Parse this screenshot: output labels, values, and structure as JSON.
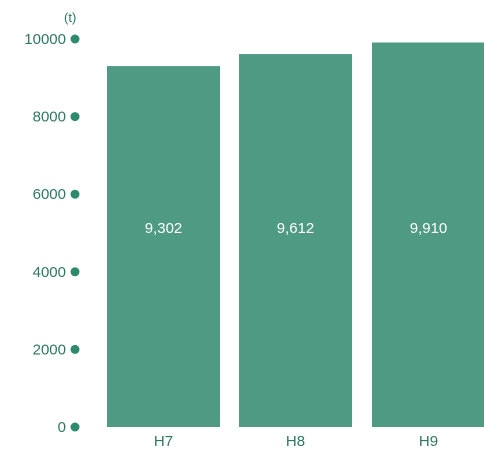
{
  "chart_data": {
    "type": "bar",
    "categories": [
      "H7",
      "H8",
      "H9"
    ],
    "values": [
      9302,
      9612,
      9910
    ],
    "data_labels": [
      "9,302",
      "9,612",
      "9,910"
    ],
    "title": "",
    "xlabel": "",
    "ylabel": "",
    "unit_label": "(t)",
    "ylim": [
      0,
      10000
    ],
    "yticks": [
      0,
      2000,
      4000,
      6000,
      8000,
      10000
    ],
    "ytick_labels": [
      "0",
      "2000",
      "4000",
      "6000",
      "8000",
      "10000"
    ],
    "grid": false,
    "legend": "none",
    "colors": {
      "bar": "#4f9a83",
      "axis_text": "#2f7763",
      "tick_dot": "#2e8a6e",
      "data_label": "#ffffff"
    }
  }
}
